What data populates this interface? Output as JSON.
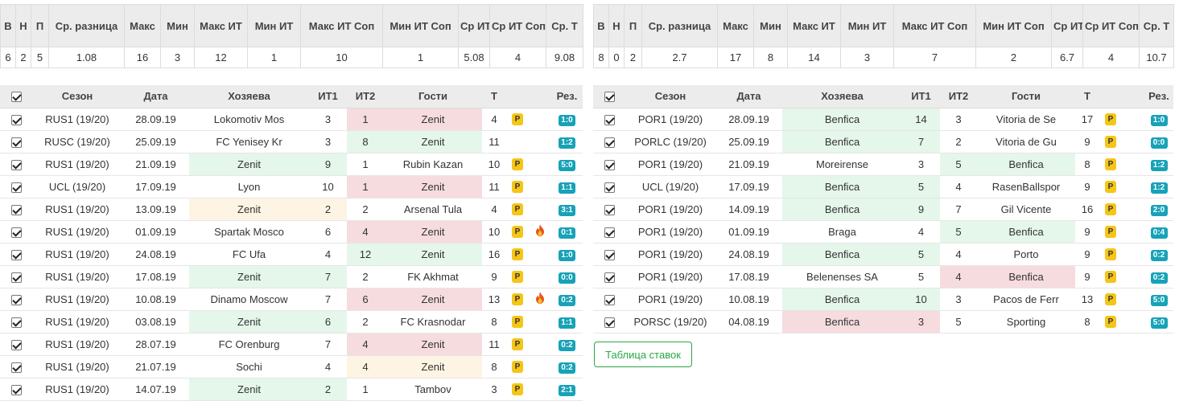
{
  "stats_headers": [
    "В",
    "Н",
    "П",
    "Ср. разница",
    "Макс",
    "Мин",
    "Макс ИТ",
    "Мин ИТ",
    "Макс ИТ Соп",
    "Мин ИТ Соп",
    "Ср ИТ",
    "Ср ИТ Соп",
    "Ср. Т"
  ],
  "match_headers": [
    "Сезон",
    "Дата",
    "Хозяева",
    "ИТ1",
    "ИТ2",
    "Гости",
    "Т",
    "Рез."
  ],
  "p_label": "P",
  "left": {
    "stats": [
      "6",
      "2",
      "5",
      "1.08",
      "16",
      "3",
      "12",
      "1",
      "10",
      "1",
      "5.08",
      "4",
      "9.08"
    ],
    "matches": [
      {
        "season": "RUS1 (19/20)",
        "date": "28.09.19",
        "home": "Lokomotiv Mos",
        "it1": "3",
        "it2": "1",
        "away": "Zenit",
        "t": "4",
        "p": true,
        "fire": false,
        "res": "1:0",
        "home_bg": "",
        "away_bg": "red"
      },
      {
        "season": "RUSC (19/20)",
        "date": "25.09.19",
        "home": "FC Yenisey Kr",
        "it1": "3",
        "it2": "8",
        "away": "Zenit",
        "t": "11",
        "p": false,
        "fire": false,
        "res": "1:2",
        "home_bg": "",
        "away_bg": "green"
      },
      {
        "season": "RUS1 (19/20)",
        "date": "21.09.19",
        "home": "Zenit",
        "it1": "9",
        "it2": "1",
        "away": "Rubin Kazan",
        "t": "10",
        "p": true,
        "fire": false,
        "res": "5:0",
        "home_bg": "green",
        "away_bg": ""
      },
      {
        "season": "UCL (19/20)",
        "date": "17.09.19",
        "home": "Lyon",
        "it1": "10",
        "it2": "1",
        "away": "Zenit",
        "t": "11",
        "p": true,
        "fire": false,
        "res": "1:1",
        "home_bg": "",
        "away_bg": "red"
      },
      {
        "season": "RUS1 (19/20)",
        "date": "13.09.19",
        "home": "Zenit",
        "it1": "2",
        "it2": "2",
        "away": "Arsenal Tula",
        "t": "4",
        "p": true,
        "fire": false,
        "res": "3:1",
        "home_bg": "yellow",
        "away_bg": ""
      },
      {
        "season": "RUS1 (19/20)",
        "date": "01.09.19",
        "home": "Spartak Mosco",
        "it1": "6",
        "it2": "4",
        "away": "Zenit",
        "t": "10",
        "p": true,
        "fire": true,
        "res": "0:1",
        "home_bg": "",
        "away_bg": "red"
      },
      {
        "season": "RUS1 (19/20)",
        "date": "24.08.19",
        "home": "FC Ufa",
        "it1": "4",
        "it2": "12",
        "away": "Zenit",
        "t": "16",
        "p": true,
        "fire": false,
        "res": "1:0",
        "home_bg": "",
        "away_bg": "green"
      },
      {
        "season": "RUS1 (19/20)",
        "date": "17.08.19",
        "home": "Zenit",
        "it1": "7",
        "it2": "2",
        "away": "FK Akhmat",
        "t": "9",
        "p": true,
        "fire": false,
        "res": "0:0",
        "home_bg": "green",
        "away_bg": ""
      },
      {
        "season": "RUS1 (19/20)",
        "date": "10.08.19",
        "home": "Dinamo Moscow",
        "it1": "7",
        "it2": "6",
        "away": "Zenit",
        "t": "13",
        "p": true,
        "fire": true,
        "res": "0:2",
        "home_bg": "",
        "away_bg": "red"
      },
      {
        "season": "RUS1 (19/20)",
        "date": "03.08.19",
        "home": "Zenit",
        "it1": "6",
        "it2": "2",
        "away": "FC Krasnodar",
        "t": "8",
        "p": true,
        "fire": false,
        "res": "1:1",
        "home_bg": "green",
        "away_bg": ""
      },
      {
        "season": "RUS1 (19/20)",
        "date": "28.07.19",
        "home": "FC Orenburg",
        "it1": "7",
        "it2": "4",
        "away": "Zenit",
        "t": "11",
        "p": true,
        "fire": false,
        "res": "0:2",
        "home_bg": "",
        "away_bg": "red"
      },
      {
        "season": "RUS1 (19/20)",
        "date": "21.07.19",
        "home": "Sochi",
        "it1": "4",
        "it2": "4",
        "away": "Zenit",
        "t": "8",
        "p": true,
        "fire": false,
        "res": "0:2",
        "home_bg": "",
        "away_bg": "yellow"
      },
      {
        "season": "RUS1 (19/20)",
        "date": "14.07.19",
        "home": "Zenit",
        "it1": "2",
        "it2": "1",
        "away": "Tambov",
        "t": "3",
        "p": true,
        "fire": false,
        "res": "2:1",
        "home_bg": "green",
        "away_bg": ""
      }
    ]
  },
  "right": {
    "stats": [
      "8",
      "0",
      "2",
      "2.7",
      "17",
      "8",
      "14",
      "3",
      "7",
      "2",
      "6.7",
      "4",
      "10.7"
    ],
    "matches": [
      {
        "season": "POR1 (19/20)",
        "date": "28.09.19",
        "home": "Benfica",
        "it1": "14",
        "it2": "3",
        "away": "Vitoria de Se",
        "t": "17",
        "p": true,
        "fire": false,
        "res": "1:0",
        "home_bg": "green",
        "away_bg": ""
      },
      {
        "season": "PORLC (19/20)",
        "date": "25.09.19",
        "home": "Benfica",
        "it1": "7",
        "it2": "2",
        "away": "Vitoria de Gu",
        "t": "9",
        "p": true,
        "fire": false,
        "res": "0:0",
        "home_bg": "green",
        "away_bg": ""
      },
      {
        "season": "POR1 (19/20)",
        "date": "21.09.19",
        "home": "Moreirense",
        "it1": "3",
        "it2": "5",
        "away": "Benfica",
        "t": "8",
        "p": true,
        "fire": false,
        "res": "1:2",
        "home_bg": "",
        "away_bg": "green"
      },
      {
        "season": "UCL (19/20)",
        "date": "17.09.19",
        "home": "Benfica",
        "it1": "5",
        "it2": "4",
        "away": "RasenBallspor",
        "t": "9",
        "p": true,
        "fire": false,
        "res": "1:2",
        "home_bg": "green",
        "away_bg": ""
      },
      {
        "season": "POR1 (19/20)",
        "date": "14.09.19",
        "home": "Benfica",
        "it1": "9",
        "it2": "7",
        "away": "Gil Vicente",
        "t": "16",
        "p": true,
        "fire": false,
        "res": "2:0",
        "home_bg": "green",
        "away_bg": ""
      },
      {
        "season": "POR1 (19/20)",
        "date": "01.09.19",
        "home": "Braga",
        "it1": "4",
        "it2": "5",
        "away": "Benfica",
        "t": "9",
        "p": true,
        "fire": false,
        "res": "0:4",
        "home_bg": "",
        "away_bg": "green"
      },
      {
        "season": "POR1 (19/20)",
        "date": "24.08.19",
        "home": "Benfica",
        "it1": "5",
        "it2": "4",
        "away": "Porto",
        "t": "9",
        "p": true,
        "fire": false,
        "res": "0:2",
        "home_bg": "green",
        "away_bg": ""
      },
      {
        "season": "POR1 (19/20)",
        "date": "17.08.19",
        "home": "Belenenses SA",
        "it1": "5",
        "it2": "4",
        "away": "Benfica",
        "t": "9",
        "p": true,
        "fire": false,
        "res": "0:2",
        "home_bg": "",
        "away_bg": "red"
      },
      {
        "season": "POR1 (19/20)",
        "date": "10.08.19",
        "home": "Benfica",
        "it1": "10",
        "it2": "3",
        "away": "Pacos de Ferr",
        "t": "13",
        "p": true,
        "fire": false,
        "res": "5:0",
        "home_bg": "green",
        "away_bg": ""
      },
      {
        "season": "PORSC (19/20)",
        "date": "04.08.19",
        "home": "Benfica",
        "it1": "3",
        "it2": "5",
        "away": "Sporting",
        "t": "8",
        "p": true,
        "fire": false,
        "res": "5:0",
        "home_bg": "red",
        "away_bg": ""
      }
    ]
  },
  "bet_button_label": "Таблица ставок",
  "colors": {
    "green": "#e5f6ea",
    "red": "#f6dcdf",
    "yellow": "#fdf4e3",
    "result_badge": "#17a2b8",
    "p_badge": "#f5c518",
    "button": "#28a745"
  }
}
